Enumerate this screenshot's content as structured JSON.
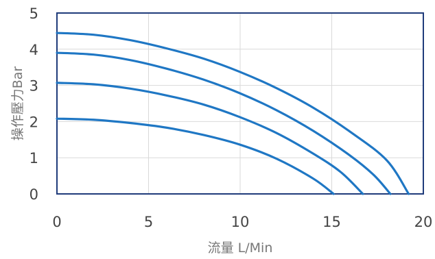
{
  "chart_data": {
    "type": "line",
    "title": "",
    "xlabel": "流量 L/Min",
    "ylabel": "操作壓力Bar",
    "xlim": [
      0,
      20
    ],
    "ylim": [
      0,
      5
    ],
    "xticks": [
      "0",
      "5",
      "10",
      "15",
      "20"
    ],
    "yticks": [
      "0",
      "1",
      "2",
      "3",
      "4",
      "5"
    ],
    "grid": true,
    "legend": "none",
    "line_color": "#1f77c4",
    "series": [
      {
        "x": [
          0,
          2,
          4,
          6,
          8,
          10,
          12,
          14,
          15.1
        ],
        "y": [
          2.08,
          2.05,
          1.96,
          1.83,
          1.63,
          1.36,
          0.97,
          0.42,
          0
        ]
      },
      {
        "x": [
          0,
          2,
          4,
          6,
          8,
          10,
          12,
          14,
          15.5,
          16.7
        ],
        "y": [
          3.07,
          3.03,
          2.91,
          2.72,
          2.47,
          2.12,
          1.68,
          1.11,
          0.6,
          0
        ]
      },
      {
        "x": [
          0,
          2,
          4,
          6,
          8,
          10,
          12,
          14,
          16,
          17.3,
          18.2
        ],
        "y": [
          3.9,
          3.85,
          3.7,
          3.46,
          3.16,
          2.78,
          2.31,
          1.74,
          1.06,
          0.52,
          0
        ]
      },
      {
        "x": [
          0,
          2,
          4,
          6,
          8,
          10,
          12,
          14,
          16,
          18,
          19.2
        ],
        "y": [
          4.45,
          4.4,
          4.25,
          4.02,
          3.74,
          3.37,
          2.92,
          2.38,
          1.72,
          0.93,
          0
        ]
      }
    ]
  }
}
